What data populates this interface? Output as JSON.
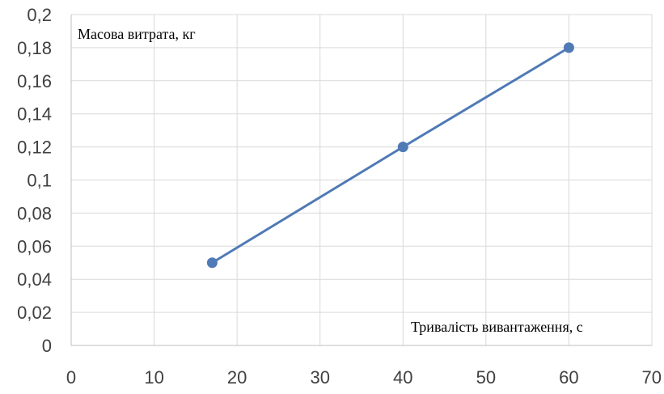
{
  "chart_data": {
    "type": "scatter",
    "title": "",
    "xlabel": "Тривалість вивантаження, с",
    "ylabel": "Масова витрата, кг",
    "xlim": [
      0,
      70
    ],
    "ylim": [
      0,
      0.2
    ],
    "x_ticks": [
      "0",
      "10",
      "20",
      "30",
      "40",
      "50",
      "60",
      "70"
    ],
    "y_ticks": [
      "0",
      "0,02",
      "0,04",
      "0,06",
      "0,08",
      "0,1",
      "0,12",
      "0,14",
      "0,16",
      "0,18",
      "0,2"
    ],
    "grid": true,
    "legend": "none",
    "series": [
      {
        "x": [
          17,
          40,
          60
        ],
        "y": [
          0.05,
          0.12,
          0.18
        ],
        "color": "#4F7AB6",
        "markers": true,
        "line": true
      }
    ]
  }
}
